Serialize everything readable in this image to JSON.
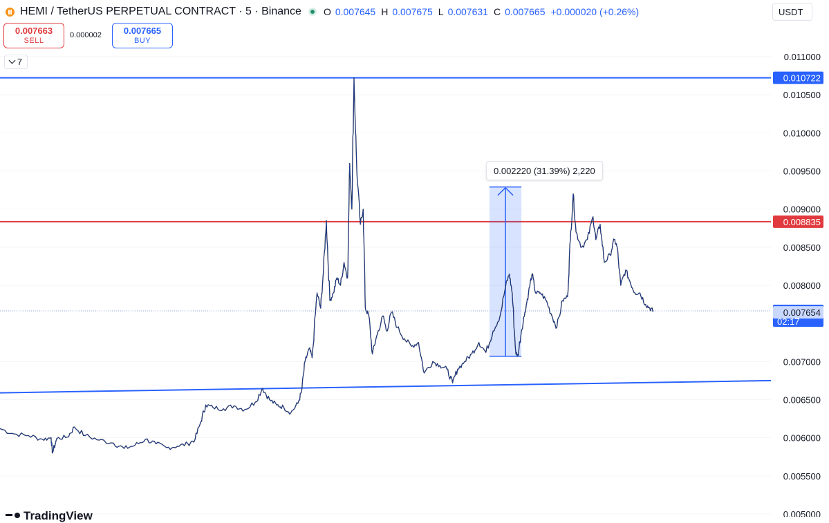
{
  "header": {
    "title": "HEMI / TetherUS PERPETUAL CONTRACT · 5 · Binance",
    "icon": "hemi-coin-icon",
    "ohlc": [
      {
        "k": "O",
        "v": "0.007645"
      },
      {
        "k": "H",
        "v": "0.007675"
      },
      {
        "k": "L",
        "v": "0.007631"
      },
      {
        "k": "C",
        "v": "0.007665"
      }
    ],
    "change": "+0.000020 (+0.26%)"
  },
  "trade": {
    "sell_price": "0.007663",
    "sell_label": "SELL",
    "spread": "0.000002",
    "buy_price": "0.007665",
    "buy_label": "BUY"
  },
  "indicator_toggle": "7",
  "currency": "USDT",
  "measure_label": "0.002220 (31.39%) 2,220",
  "logo_text": "TradingView",
  "colors": {
    "candles": "#131722",
    "trendline": "#2962ff",
    "resistance": "#e03a3e",
    "accent": "#2962ff"
  },
  "chart_data": {
    "type": "line",
    "title": "HEMI / TetherUS PERPETUAL CONTRACT · 5 · Binance",
    "ylabel": "USDT",
    "ylim": [
      0.005,
      0.0112
    ],
    "y_ticks": [
      "0.011000",
      "0.010500",
      "0.010000",
      "0.009500",
      "0.009000",
      "0.008500",
      "0.008000",
      "0.007000",
      "0.006500",
      "0.006000",
      "0.005500",
      "0.005000"
    ],
    "price_labels": [
      {
        "label": "0.010722",
        "value": 0.010722,
        "style": "line-blue"
      },
      {
        "label": "0.008835",
        "value": 0.008835,
        "style": "line-red"
      },
      {
        "label": "0.007665",
        "value": 0.007665,
        "style": "last-price",
        "countdown": "02:17"
      },
      {
        "label": "0.007654",
        "value": 0.007654,
        "style": "light"
      }
    ],
    "horizontal_lines": [
      {
        "value": 0.010722,
        "color": "blue"
      },
      {
        "value": 0.008835,
        "color": "red"
      }
    ],
    "trendline": {
      "t_start": 0,
      "t_end": 1,
      "y_start": 0.00659,
      "y_end": 0.00675
    },
    "current_price": 0.007665,
    "measure": {
      "from": 0.00707,
      "to": 0.00929,
      "t_start": 0.69,
      "t_end": 0.735,
      "text": "0.002220 (31.39%) 2,220"
    },
    "series": [
      {
        "values": [
          [
            0.0,
            0.00612
          ],
          [
            0.02,
            0.00605
          ],
          [
            0.04,
            0.00603
          ],
          [
            0.06,
            0.00598
          ],
          [
            0.072,
            0.006
          ],
          [
            0.074,
            0.0058
          ],
          [
            0.08,
            0.00599
          ],
          [
            0.095,
            0.00601
          ],
          [
            0.105,
            0.00614
          ],
          [
            0.12,
            0.00603
          ],
          [
            0.14,
            0.00597
          ],
          [
            0.16,
            0.00593
          ],
          [
            0.175,
            0.00586
          ],
          [
            0.19,
            0.0059
          ],
          [
            0.205,
            0.00598
          ],
          [
            0.22,
            0.00592
          ],
          [
            0.235,
            0.00587
          ],
          [
            0.25,
            0.00589
          ],
          [
            0.265,
            0.00592
          ],
          [
            0.275,
            0.00598
          ],
          [
            0.283,
            0.00621
          ],
          [
            0.29,
            0.00643
          ],
          [
            0.3,
            0.0064
          ],
          [
            0.315,
            0.00638
          ],
          [
            0.33,
            0.00642
          ],
          [
            0.345,
            0.00637
          ],
          [
            0.36,
            0.00647
          ],
          [
            0.37,
            0.00665
          ],
          [
            0.38,
            0.0065
          ],
          [
            0.39,
            0.00643
          ],
          [
            0.4,
            0.0064
          ],
          [
            0.41,
            0.00633
          ],
          [
            0.42,
            0.00645
          ],
          [
            0.425,
            0.0066
          ],
          [
            0.43,
            0.007
          ],
          [
            0.436,
            0.00717
          ],
          [
            0.44,
            0.00705
          ],
          [
            0.447,
            0.0079
          ],
          [
            0.452,
            0.0077
          ],
          [
            0.456,
            0.0082
          ],
          [
            0.46,
            0.00885
          ],
          [
            0.465,
            0.0078
          ],
          [
            0.47,
            0.0079
          ],
          [
            0.475,
            0.0081
          ],
          [
            0.48,
            0.008
          ],
          [
            0.485,
            0.0083
          ],
          [
            0.49,
            0.0081
          ],
          [
            0.493,
            0.0096
          ],
          [
            0.496,
            0.009
          ],
          [
            0.499,
            0.01072
          ],
          [
            0.503,
            0.0095
          ],
          [
            0.508,
            0.0088
          ],
          [
            0.512,
            0.009
          ],
          [
            0.515,
            0.0077
          ],
          [
            0.52,
            0.0076
          ],
          [
            0.525,
            0.0071
          ],
          [
            0.53,
            0.0073
          ],
          [
            0.54,
            0.0076
          ],
          [
            0.545,
            0.0074
          ],
          [
            0.552,
            0.00765
          ],
          [
            0.56,
            0.00745
          ],
          [
            0.57,
            0.0073
          ],
          [
            0.58,
            0.0072
          ],
          [
            0.59,
            0.00725
          ],
          [
            0.598,
            0.00685
          ],
          [
            0.61,
            0.007
          ],
          [
            0.62,
            0.00695
          ],
          [
            0.63,
            0.0069
          ],
          [
            0.638,
            0.00672
          ],
          [
            0.645,
            0.0069
          ],
          [
            0.655,
            0.007
          ],
          [
            0.665,
            0.0071
          ],
          [
            0.675,
            0.00725
          ],
          [
            0.685,
            0.00712
          ],
          [
            0.695,
            0.0074
          ],
          [
            0.705,
            0.0076
          ],
          [
            0.713,
            0.008
          ],
          [
            0.718,
            0.00815
          ],
          [
            0.722,
            0.0079
          ],
          [
            0.727,
            0.00712
          ],
          [
            0.73,
            0.00707
          ],
          [
            0.735,
            0.0074
          ],
          [
            0.74,
            0.00765
          ],
          [
            0.745,
            0.0079
          ],
          [
            0.75,
            0.00815
          ],
          [
            0.755,
            0.0079
          ],
          [
            0.762,
            0.0079
          ],
          [
            0.77,
            0.0078
          ],
          [
            0.778,
            0.0076
          ],
          [
            0.785,
            0.00745
          ],
          [
            0.793,
            0.0078
          ],
          [
            0.8,
            0.00785
          ],
          [
            0.804,
            0.0086
          ],
          [
            0.808,
            0.0092
          ],
          [
            0.812,
            0.0087
          ],
          [
            0.82,
            0.0085
          ],
          [
            0.828,
            0.0086
          ],
          [
            0.836,
            0.0089
          ],
          [
            0.84,
            0.0086
          ],
          [
            0.846,
            0.0088
          ],
          [
            0.852,
            0.0083
          ],
          [
            0.86,
            0.0084
          ],
          [
            0.866,
            0.0086
          ],
          [
            0.87,
            0.0085
          ],
          [
            0.875,
            0.008
          ],
          [
            0.882,
            0.0082
          ],
          [
            0.888,
            0.00805
          ],
          [
            0.895,
            0.0079
          ],
          [
            0.902,
            0.0079
          ],
          [
            0.91,
            0.00775
          ],
          [
            0.916,
            0.0077
          ],
          [
            0.921,
            0.00766
          ]
        ]
      }
    ]
  }
}
